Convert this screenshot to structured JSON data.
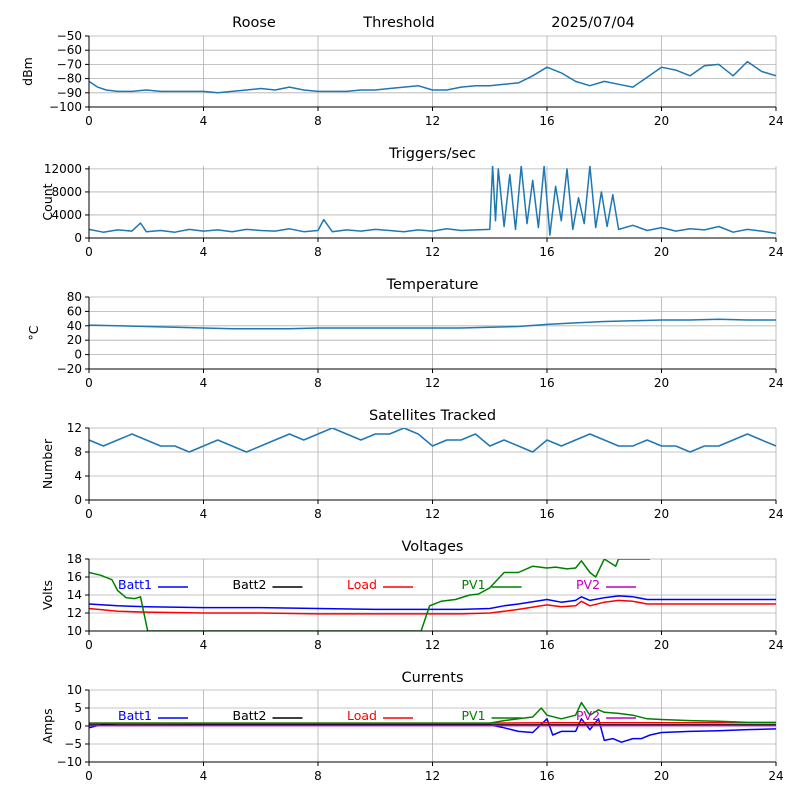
{
  "header": {
    "station": "Roose",
    "mode": "Threshold",
    "date": "2025/07/04"
  },
  "chart_data": [
    {
      "type": "line",
      "title": "",
      "ylabel": "dBm",
      "xlim": [
        0,
        24
      ],
      "ylim": [
        -100,
        -50
      ],
      "xticks": [
        0,
        4,
        8,
        12,
        16,
        20,
        24
      ],
      "yticks": [
        -100,
        -90,
        -80,
        -70,
        -60,
        -50
      ],
      "grid": true,
      "series": [
        {
          "color": "#1f77b4",
          "x": [
            0,
            0.3,
            0.6,
            1,
            1.5,
            2,
            2.5,
            3,
            3.5,
            4,
            4.5,
            5,
            5.5,
            6,
            6.5,
            7,
            7.5,
            8,
            8.5,
            9,
            9.5,
            10,
            10.5,
            11,
            11.5,
            12,
            12.5,
            13,
            13.5,
            14,
            14.5,
            15,
            15.5,
            16,
            16.5,
            17,
            17.5,
            18,
            18.5,
            19,
            19.5,
            20,
            20.5,
            21,
            21.5,
            22,
            22.5,
            23,
            23.5,
            24
          ],
          "y": [
            -82,
            -86,
            -88,
            -89,
            -89,
            -88,
            -89,
            -89,
            -89,
            -89,
            -90,
            -89,
            -88,
            -87,
            -88,
            -86,
            -88,
            -89,
            -89,
            -89,
            -88,
            -88,
            -87,
            -86,
            -85,
            -88,
            -88,
            -86,
            -85,
            -85,
            -84,
            -83,
            -78,
            -72,
            -76,
            -82,
            -85,
            -82,
            -84,
            -86,
            -79,
            -72,
            -74,
            -78,
            -71,
            -70,
            -78,
            -68,
            -75,
            -78
          ]
        }
      ]
    },
    {
      "type": "line",
      "title": "Triggers/sec",
      "ylabel": "Count",
      "xlim": [
        0,
        24
      ],
      "ylim": [
        0,
        12500
      ],
      "xticks": [
        0,
        4,
        8,
        12,
        16,
        20,
        24
      ],
      "yticks": [
        0,
        4000,
        8000,
        12000
      ],
      "grid": true,
      "series": [
        {
          "color": "#1f77b4",
          "x": [
            0,
            0.5,
            1,
            1.5,
            1.8,
            2,
            2.5,
            3,
            3.5,
            4,
            4.5,
            5,
            5.5,
            6,
            6.5,
            7,
            7.5,
            8,
            8.2,
            8.5,
            9,
            9.5,
            10,
            10.5,
            11,
            11.5,
            12,
            12.5,
            13,
            13.5,
            14,
            14.1,
            14.2,
            14.3,
            14.5,
            14.7,
            14.9,
            15.1,
            15.3,
            15.5,
            15.7,
            15.9,
            16.1,
            16.3,
            16.5,
            16.7,
            16.9,
            17.1,
            17.3,
            17.5,
            17.7,
            17.9,
            18.1,
            18.3,
            18.5,
            19,
            19.5,
            20,
            20.5,
            21,
            21.5,
            22,
            22.5,
            23,
            23.5,
            24
          ],
          "y": [
            1500,
            1000,
            1400,
            1200,
            2600,
            1100,
            1300,
            1000,
            1500,
            1200,
            1400,
            1100,
            1500,
            1300,
            1200,
            1600,
            1100,
            1300,
            3200,
            1100,
            1400,
            1200,
            1500,
            1300,
            1100,
            1400,
            1200,
            1600,
            1300,
            1400,
            1500,
            12500,
            3000,
            12000,
            2000,
            11000,
            1500,
            12500,
            2500,
            10000,
            1800,
            12500,
            500,
            9000,
            3000,
            12000,
            1500,
            7000,
            2500,
            12500,
            1800,
            8000,
            2000,
            7500,
            1500,
            2200,
            1300,
            1800,
            1200,
            1600,
            1400,
            2000,
            1000,
            1500,
            1200,
            800
          ]
        }
      ]
    },
    {
      "type": "line",
      "title": "Temperature",
      "ylabel": "°C",
      "xlim": [
        0,
        24
      ],
      "ylim": [
        -20,
        80
      ],
      "xticks": [
        0,
        4,
        8,
        12,
        16,
        20,
        24
      ],
      "yticks": [
        -20,
        0,
        20,
        40,
        60,
        80
      ],
      "grid": true,
      "series": [
        {
          "color": "#1f77b4",
          "x": [
            0,
            1,
            2,
            3,
            4,
            5,
            6,
            7,
            8,
            9,
            10,
            11,
            12,
            13,
            14,
            15,
            16,
            17,
            18,
            19,
            20,
            21,
            22,
            23,
            24
          ],
          "y": [
            41,
            40,
            39,
            38,
            37,
            36,
            36,
            36,
            37,
            37,
            37,
            37,
            37,
            37,
            38,
            39,
            42,
            44,
            46,
            47,
            48,
            48,
            49,
            48,
            48
          ]
        }
      ]
    },
    {
      "type": "line",
      "title": "Satellites Tracked",
      "ylabel": "Number",
      "xlim": [
        0,
        24
      ],
      "ylim": [
        0,
        12
      ],
      "xticks": [
        0,
        4,
        8,
        12,
        16,
        20,
        24
      ],
      "yticks": [
        0,
        4,
        8,
        12
      ],
      "grid": true,
      "series": [
        {
          "color": "#1f77b4",
          "x": [
            0,
            0.5,
            1,
            1.5,
            2,
            2.5,
            3,
            3.5,
            4,
            4.5,
            5,
            5.5,
            6,
            6.5,
            7,
            7.5,
            8,
            8.5,
            9,
            9.5,
            10,
            10.5,
            11,
            11.5,
            12,
            12.5,
            13,
            13.5,
            14,
            14.5,
            15,
            15.5,
            16,
            16.5,
            17,
            17.5,
            18,
            18.5,
            19,
            19.5,
            20,
            20.5,
            21,
            21.5,
            22,
            22.5,
            23,
            23.5,
            24
          ],
          "y": [
            10,
            9,
            10,
            11,
            10,
            9,
            9,
            8,
            9,
            10,
            9,
            8,
            9,
            10,
            11,
            10,
            11,
            12,
            11,
            10,
            11,
            11,
            12,
            11,
            9,
            10,
            10,
            11,
            9,
            10,
            9,
            8,
            10,
            9,
            10,
            11,
            10,
            9,
            9,
            10,
            9,
            9,
            8,
            9,
            9,
            10,
            11,
            10,
            9
          ]
        }
      ]
    },
    {
      "type": "line",
      "title": "Voltages",
      "ylabel": "Volts",
      "xlim": [
        0,
        24
      ],
      "ylim": [
        10,
        18
      ],
      "xticks": [
        0,
        4,
        8,
        12,
        16,
        20,
        24
      ],
      "yticks": [
        10,
        12,
        14,
        16,
        18
      ],
      "grid": true,
      "legend": [
        "Batt1",
        "Batt2",
        "Load",
        "PV1",
        "PV2"
      ],
      "series": [
        {
          "name": "Batt1",
          "color": "#0000ff",
          "x": [
            0,
            1,
            2,
            4,
            6,
            8,
            10,
            12,
            13,
            14,
            14.5,
            15,
            16,
            16.5,
            17,
            17.2,
            17.5,
            18,
            18.5,
            19,
            19.5,
            20,
            24
          ],
          "y": [
            13.0,
            12.8,
            12.7,
            12.6,
            12.6,
            12.5,
            12.4,
            12.4,
            12.4,
            12.5,
            12.8,
            13.0,
            13.5,
            13.2,
            13.4,
            13.8,
            13.4,
            13.7,
            13.9,
            13.8,
            13.5,
            13.5,
            13.5
          ]
        },
        {
          "name": "Load",
          "color": "#ff0000",
          "x": [
            0,
            1,
            2,
            4,
            6,
            8,
            10,
            12,
            13,
            14,
            14.5,
            15,
            16,
            16.5,
            17,
            17.2,
            17.5,
            18,
            18.5,
            19,
            19.5,
            20,
            24
          ],
          "y": [
            12.5,
            12.2,
            12.1,
            12.0,
            12.0,
            11.9,
            11.9,
            11.9,
            11.9,
            12.0,
            12.2,
            12.4,
            12.9,
            12.7,
            12.8,
            13.3,
            12.8,
            13.2,
            13.4,
            13.3,
            13.0,
            13.0,
            13.0
          ]
        },
        {
          "name": "PV1",
          "color": "#008000",
          "x": [
            0,
            0.4,
            0.8,
            1,
            1.3,
            1.6,
            1.8,
            2.05,
            11.6,
            11.9,
            12.3,
            12.8,
            13.3,
            13.6,
            14,
            14.5,
            15,
            15.5,
            16,
            16.3,
            16.7,
            17,
            17.2,
            17.5,
            17.7,
            18,
            18.2,
            18.4,
            18.5,
            18.7,
            19,
            19.2,
            19.4,
            19.6
          ],
          "y": [
            16.5,
            16.2,
            15.7,
            14.5,
            13.7,
            13.6,
            13.8,
            10,
            10,
            12.8,
            13.3,
            13.5,
            14.0,
            14.1,
            14.8,
            16.5,
            16.5,
            17.2,
            17.0,
            17.1,
            16.9,
            17.0,
            17.8,
            16.5,
            16.0,
            18.0,
            17.6,
            17.2,
            18.0,
            18.0,
            18.0,
            18.0,
            18.0,
            18.0
          ]
        }
      ]
    },
    {
      "type": "line",
      "title": "Currents",
      "ylabel": "Amps",
      "xlim": [
        0,
        24
      ],
      "ylim": [
        -10,
        10
      ],
      "xticks": [
        0,
        4,
        8,
        12,
        16,
        20,
        24
      ],
      "yticks": [
        -10,
        -5,
        0,
        5,
        10
      ],
      "grid": true,
      "legend": [
        "Batt1",
        "Batt2",
        "Load",
        "PV1",
        "PV2"
      ],
      "series": [
        {
          "name": "Batt1",
          "color": "#0000ff",
          "x": [
            0,
            0.5,
            1,
            2,
            4,
            6,
            8,
            10,
            12,
            13,
            14,
            14.5,
            15,
            15.5,
            16,
            16.2,
            16.5,
            17,
            17.2,
            17.5,
            17.8,
            18,
            18.3,
            18.6,
            19,
            19.3,
            19.6,
            20,
            21,
            22,
            23,
            24
          ],
          "y": [
            -0.5,
            0.5,
            0.2,
            0.2,
            0.3,
            0.3,
            0.3,
            0.3,
            0.3,
            0.3,
            0.3,
            -0.5,
            -1.5,
            -1.8,
            2.0,
            -2.5,
            -1.5,
            -1.5,
            2.0,
            -1.0,
            2.0,
            -4.0,
            -3.5,
            -4.5,
            -3.5,
            -3.5,
            -2.5,
            -1.8,
            -1.5,
            -1.3,
            -1.0,
            -0.8
          ]
        },
        {
          "name": "Load",
          "color": "#ff0000",
          "x": [
            0,
            2,
            4,
            6,
            8,
            10,
            12,
            14,
            16,
            18,
            20,
            22,
            24
          ],
          "y": [
            0.8,
            0.8,
            0.8,
            0.8,
            0.8,
            0.8,
            0.8,
            0.8,
            0.9,
            0.9,
            0.9,
            0.9,
            0.9
          ]
        },
        {
          "name": "PV1",
          "color": "#008000",
          "x": [
            0,
            1,
            2,
            4,
            6,
            8,
            10,
            12,
            14,
            14.5,
            15,
            15.5,
            15.8,
            16,
            16.5,
            17,
            17.2,
            17.5,
            17.8,
            18,
            18.5,
            19,
            19.5,
            20,
            21,
            22,
            23,
            24
          ],
          "y": [
            0.8,
            0.8,
            0.8,
            0.8,
            0.8,
            0.8,
            0.8,
            0.8,
            0.8,
            1.5,
            2.0,
            2.5,
            5.0,
            3.0,
            2.0,
            3.0,
            6.5,
            3.0,
            4.5,
            3.8,
            3.5,
            3.0,
            2.0,
            1.8,
            1.5,
            1.3,
            1.0,
            1.0
          ]
        },
        {
          "name": "Batt2",
          "color": "#000000",
          "x": [
            0,
            2,
            4,
            6,
            8,
            10,
            12,
            14,
            16,
            18,
            20,
            22,
            24
          ],
          "y": [
            0.3,
            0.3,
            0.3,
            0.3,
            0.3,
            0.3,
            0.3,
            0.3,
            0.3,
            0.3,
            0.3,
            0.3,
            0.3
          ]
        },
        {
          "name": "PV2",
          "color": "#c000c0",
          "x": [
            0,
            2,
            4,
            6,
            8,
            10,
            12,
            14,
            16,
            18,
            20,
            22,
            24
          ],
          "y": [
            0.1,
            0.1,
            0.1,
            0.1,
            0.1,
            0.1,
            0.1,
            0.1,
            0.1,
            0.1,
            0.1,
            0.1,
            0.1
          ]
        }
      ]
    }
  ]
}
